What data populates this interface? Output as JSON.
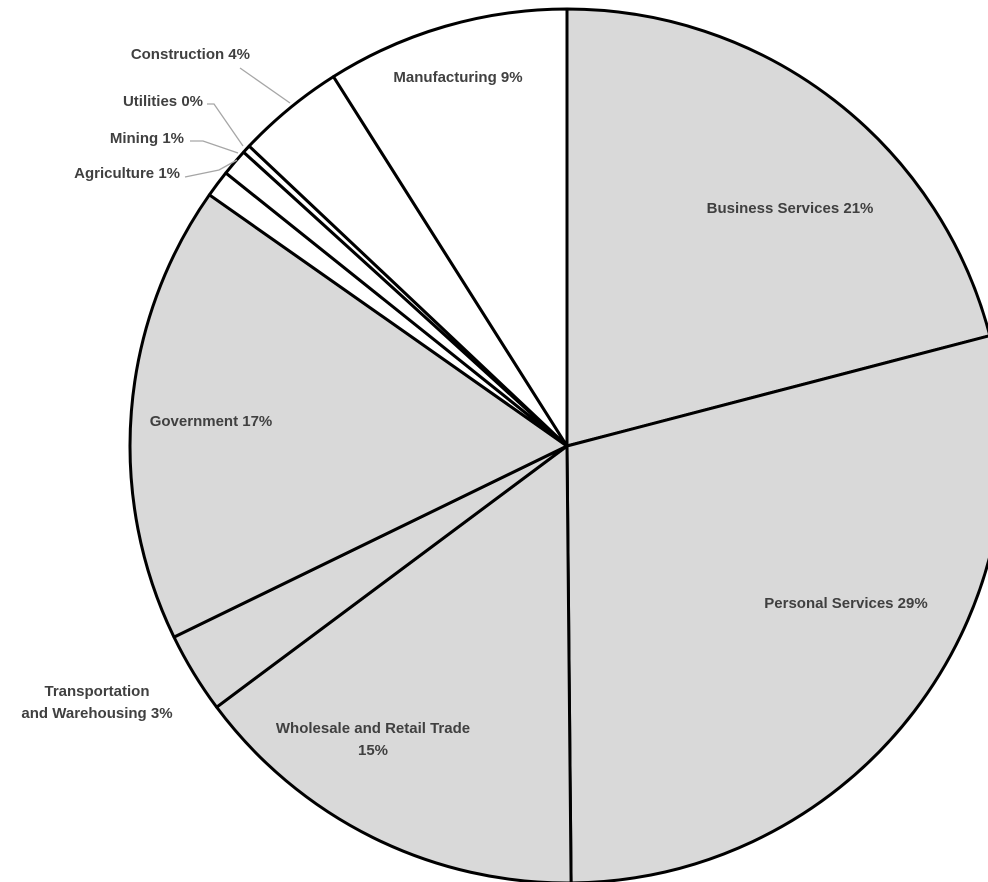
{
  "chart_data": {
    "type": "pie",
    "title": "",
    "slices": [
      {
        "label": "Business Services",
        "value": 21,
        "display": "Business Services 21%",
        "color": "#d9d9d9"
      },
      {
        "label": "Personal Services",
        "value": 29,
        "display": "Personal Services 29%",
        "color": "#d9d9d9"
      },
      {
        "label": "Wholesale and Retail Trade",
        "value": 15,
        "display": "Wholesale and Retail Trade 15%",
        "color": "#d9d9d9"
      },
      {
        "label": "Transportation and Warehousing",
        "value": 3,
        "display": "Transportation and Warehousing 3%",
        "color": "#d9d9d9"
      },
      {
        "label": "Government",
        "value": 17,
        "display": "Government 17%",
        "color": "#d9d9d9"
      },
      {
        "label": "Agriculture",
        "value": 1,
        "display": "Agriculture 1%",
        "color": "#ffffff"
      },
      {
        "label": "Mining",
        "value": 1,
        "display": "Mining 1%",
        "color": "#ffffff"
      },
      {
        "label": "Utilities",
        "value": 0.3,
        "display": "Utilities 0%",
        "color": "#ffffff"
      },
      {
        "label": "Construction",
        "value": 4,
        "display": "Construction 4%",
        "color": "#ffffff"
      },
      {
        "label": "Manufacturing",
        "value": 9,
        "display": "Manufacturing 9%",
        "color": "#ffffff"
      }
    ],
    "start_angle_deg": 0,
    "direction": "clockwise",
    "legend": "none",
    "colors": {
      "outline": "#000000",
      "leader_line": "#a6a6a6",
      "label_text": "#404040"
    }
  }
}
